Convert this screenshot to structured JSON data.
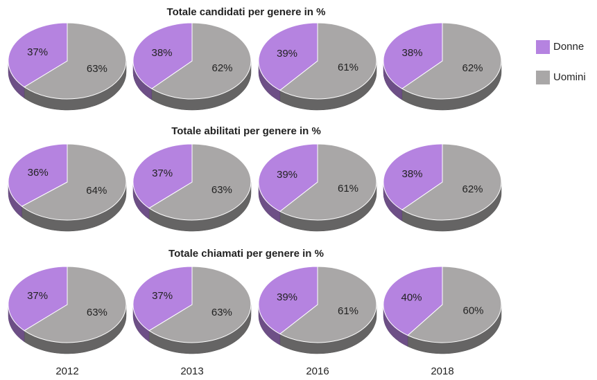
{
  "categories": [
    "2012",
    "2013",
    "2016",
    "2018"
  ],
  "legend": [
    {
      "name": "Donne",
      "color": "#b583e0"
    },
    {
      "name": "Uomini",
      "color": "#a9a7a7"
    }
  ],
  "chart_data": [
    {
      "type": "pie",
      "title": "Totale candidati per genere in %",
      "values": [
        [
          37,
          63
        ],
        [
          38,
          62
        ],
        [
          39,
          61
        ],
        [
          38,
          62
        ]
      ],
      "value_labels": [
        [
          "37%",
          "63%"
        ],
        [
          "38%",
          "62%"
        ],
        [
          "39%",
          "61%"
        ],
        [
          "38%",
          "62%"
        ]
      ]
    },
    {
      "type": "pie",
      "title": "Totale abilitati per genere in %",
      "values": [
        [
          36,
          64
        ],
        [
          37,
          63
        ],
        [
          39,
          61
        ],
        [
          38,
          62
        ]
      ],
      "value_labels": [
        [
          "36%",
          "64%"
        ],
        [
          "37%",
          "63%"
        ],
        [
          "39%",
          "61%"
        ],
        [
          "38%",
          "62%"
        ]
      ]
    },
    {
      "type": "pie",
      "title": "Totale chiamati per genere in %",
      "values": [
        [
          37,
          63
        ],
        [
          37,
          63
        ],
        [
          39,
          61
        ],
        [
          40,
          60
        ]
      ],
      "value_labels": [
        [
          "37%",
          "63%"
        ],
        [
          "37%",
          "63%"
        ],
        [
          "39%",
          "61%"
        ],
        [
          "40%",
          "60%"
        ]
      ]
    }
  ]
}
